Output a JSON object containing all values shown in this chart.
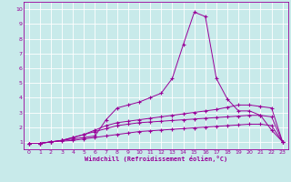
{
  "title": "",
  "xlabel": "Windchill (Refroidissement éolien,°C)",
  "ylabel": "",
  "bg_color": "#c8eaea",
  "line_color": "#990099",
  "grid_color": "#ffffff",
  "xlim": [
    -0.5,
    23.5
  ],
  "ylim": [
    0.5,
    10.5
  ],
  "xticks": [
    0,
    1,
    2,
    3,
    4,
    5,
    6,
    7,
    8,
    9,
    10,
    11,
    12,
    13,
    14,
    15,
    16,
    17,
    18,
    19,
    20,
    21,
    22,
    23
  ],
  "yticks": [
    1,
    2,
    3,
    4,
    5,
    6,
    7,
    8,
    9,
    10
  ],
  "lines": [
    {
      "x": [
        0,
        1,
        2,
        3,
        4,
        5,
        6,
        7,
        8,
        9,
        10,
        11,
        12,
        13,
        14,
        15,
        16,
        17,
        18,
        19,
        20,
        21,
        22,
        23
      ],
      "y": [
        0.9,
        0.9,
        1.0,
        1.1,
        1.2,
        1.3,
        1.4,
        2.5,
        3.3,
        3.5,
        3.7,
        4.0,
        4.3,
        5.3,
        7.6,
        9.8,
        9.5,
        5.3,
        3.9,
        3.1,
        3.1,
        2.8,
        1.8,
        1.0
      ]
    },
    {
      "x": [
        0,
        1,
        2,
        3,
        4,
        5,
        6,
        7,
        8,
        9,
        10,
        11,
        12,
        13,
        14,
        15,
        16,
        17,
        18,
        19,
        20,
        21,
        22,
        23
      ],
      "y": [
        0.9,
        0.9,
        1.0,
        1.1,
        1.3,
        1.5,
        1.8,
        2.1,
        2.3,
        2.4,
        2.5,
        2.6,
        2.7,
        2.8,
        2.9,
        3.0,
        3.1,
        3.2,
        3.35,
        3.5,
        3.5,
        3.4,
        3.3,
        1.0
      ]
    },
    {
      "x": [
        0,
        1,
        2,
        3,
        4,
        5,
        6,
        7,
        8,
        9,
        10,
        11,
        12,
        13,
        14,
        15,
        16,
        17,
        18,
        19,
        20,
        21,
        22,
        23
      ],
      "y": [
        0.9,
        0.9,
        1.0,
        1.1,
        1.3,
        1.5,
        1.7,
        1.9,
        2.1,
        2.2,
        2.3,
        2.35,
        2.4,
        2.45,
        2.5,
        2.55,
        2.6,
        2.65,
        2.7,
        2.75,
        2.8,
        2.8,
        2.7,
        1.0
      ]
    },
    {
      "x": [
        0,
        1,
        2,
        3,
        4,
        5,
        6,
        7,
        8,
        9,
        10,
        11,
        12,
        13,
        14,
        15,
        16,
        17,
        18,
        19,
        20,
        21,
        22,
        23
      ],
      "y": [
        0.9,
        0.9,
        1.0,
        1.05,
        1.1,
        1.2,
        1.3,
        1.4,
        1.5,
        1.6,
        1.7,
        1.75,
        1.8,
        1.85,
        1.9,
        1.95,
        2.0,
        2.05,
        2.1,
        2.15,
        2.2,
        2.2,
        2.1,
        1.0
      ]
    }
  ]
}
